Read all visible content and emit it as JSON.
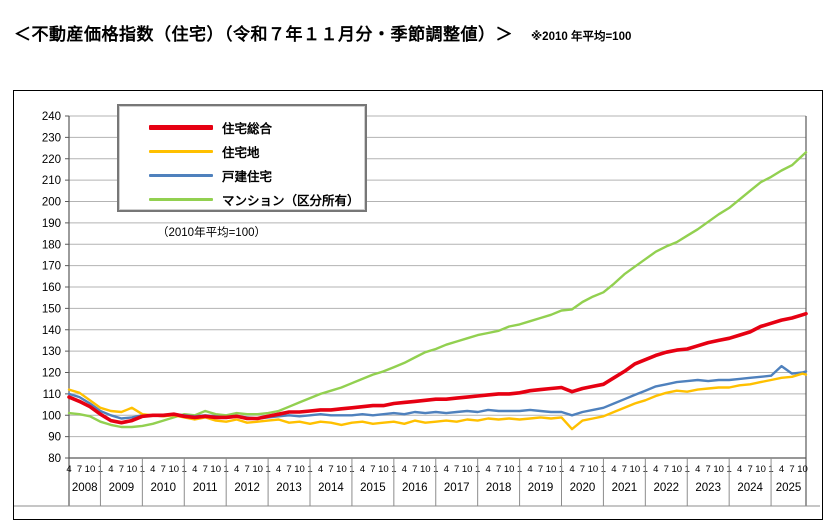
{
  "header": {
    "title": "＜不動産価格指数（住宅）（令和７年１１月分・季節調整値）＞",
    "note": "※2010 年平均=100"
  },
  "legend": {
    "items": [
      {
        "label": "住宅総合",
        "color": "#e60012",
        "thickness": 5
      },
      {
        "label": "住宅地",
        "color": "#ffc000",
        "thickness": 3
      },
      {
        "label": "戸建住宅",
        "color": "#4f81bd",
        "thickness": 3
      },
      {
        "label": "マンション（区分所有）",
        "color": "#92d050",
        "thickness": 3
      }
    ],
    "caption": "（2010年平均=100）"
  },
  "chart_data": {
    "type": "line",
    "title": "不動産価格指数（住宅）季節調整値",
    "ylim": [
      80,
      240
    ],
    "ytick_step": 10,
    "grid": true,
    "legend_position": "top-left",
    "x_axis": {
      "month_tick_pattern": [
        "4",
        "7",
        "10",
        "1"
      ],
      "years": [
        "2008",
        "2009",
        "2010",
        "2011",
        "2012",
        "2013",
        "2014",
        "2015",
        "2016",
        "2017",
        "2018",
        "2019",
        "2020",
        "2021",
        "2022",
        "2023",
        "2024",
        "2025"
      ],
      "start": "2008-04",
      "end": "2025-11"
    },
    "x": [
      "2008-04",
      "2008-07",
      "2008-10",
      "2009-01",
      "2009-04",
      "2009-07",
      "2009-10",
      "2010-01",
      "2010-04",
      "2010-07",
      "2010-10",
      "2011-01",
      "2011-04",
      "2011-07",
      "2011-10",
      "2012-01",
      "2012-04",
      "2012-07",
      "2012-10",
      "2013-01",
      "2013-04",
      "2013-07",
      "2013-10",
      "2014-01",
      "2014-04",
      "2014-07",
      "2014-10",
      "2015-01",
      "2015-04",
      "2015-07",
      "2015-10",
      "2016-01",
      "2016-04",
      "2016-07",
      "2016-10",
      "2017-01",
      "2017-04",
      "2017-07",
      "2017-10",
      "2018-01",
      "2018-04",
      "2018-07",
      "2018-10",
      "2019-01",
      "2019-04",
      "2019-07",
      "2019-10",
      "2020-01",
      "2020-04",
      "2020-07",
      "2020-10",
      "2021-01",
      "2021-04",
      "2021-07",
      "2021-10",
      "2022-01",
      "2022-04",
      "2022-07",
      "2022-10",
      "2023-01",
      "2023-04",
      "2023-07",
      "2023-10",
      "2024-01",
      "2024-04",
      "2024-07",
      "2024-10",
      "2025-01",
      "2025-04",
      "2025-07",
      "2025-10",
      "2025-11"
    ],
    "series": [
      {
        "name": "住宅総合",
        "color": "#e60012",
        "width": 3.6,
        "values": [
          108.5,
          106.5,
          104.0,
          100.5,
          97.5,
          96.5,
          97.5,
          99.5,
          100.0,
          100.0,
          100.5,
          99.5,
          99.0,
          99.5,
          99.0,
          99.0,
          99.5,
          98.5,
          98.5,
          99.5,
          100.5,
          101.5,
          101.5,
          102.0,
          102.5,
          102.5,
          103.0,
          103.5,
          104.0,
          104.5,
          104.5,
          105.5,
          106.0,
          106.5,
          107.0,
          107.5,
          107.5,
          108.0,
          108.5,
          109.0,
          109.5,
          110.0,
          110.0,
          110.5,
          111.5,
          112.0,
          112.5,
          113.0,
          111.0,
          112.5,
          113.5,
          114.5,
          117.5,
          120.5,
          124.0,
          126.0,
          128.0,
          129.5,
          130.5,
          131.0,
          132.5,
          134.0,
          135.0,
          136.0,
          137.5,
          139.0,
          141.5,
          143.0,
          144.5,
          145.5,
          147.0,
          147.5
        ]
      },
      {
        "name": "住宅地",
        "color": "#ffc000",
        "width": 2.4,
        "values": [
          112.0,
          110.5,
          107.0,
          103.5,
          102.0,
          101.5,
          103.5,
          100.5,
          100.0,
          99.5,
          100.0,
          99.0,
          98.0,
          99.0,
          97.5,
          97.0,
          98.0,
          96.5,
          97.0,
          97.5,
          98.0,
          96.5,
          97.0,
          96.0,
          97.0,
          96.5,
          95.5,
          96.5,
          97.0,
          96.0,
          96.5,
          97.0,
          96.0,
          97.5,
          96.5,
          97.0,
          97.5,
          97.0,
          98.0,
          97.5,
          98.5,
          98.0,
          98.5,
          98.0,
          98.5,
          99.0,
          98.5,
          99.0,
          93.5,
          97.5,
          98.5,
          99.5,
          101.5,
          103.5,
          105.5,
          107.0,
          109.0,
          110.5,
          111.5,
          111.0,
          112.0,
          112.5,
          113.0,
          113.0,
          114.0,
          114.5,
          115.5,
          116.5,
          117.5,
          118.0,
          119.5,
          119.0
        ]
      },
      {
        "name": "戸建住宅",
        "color": "#4f81bd",
        "width": 2.4,
        "values": [
          110.0,
          108.5,
          105.5,
          102.0,
          100.0,
          98.5,
          99.0,
          100.0,
          100.0,
          99.5,
          100.5,
          100.0,
          99.5,
          100.0,
          99.5,
          99.0,
          99.5,
          99.0,
          98.5,
          99.0,
          99.5,
          100.0,
          99.5,
          100.0,
          100.5,
          100.0,
          100.0,
          100.0,
          100.5,
          100.0,
          100.5,
          101.0,
          100.5,
          101.5,
          101.0,
          101.5,
          101.0,
          101.5,
          102.0,
          101.5,
          102.5,
          102.0,
          102.0,
          102.0,
          102.5,
          102.0,
          101.5,
          101.5,
          100.0,
          101.5,
          102.5,
          103.5,
          105.5,
          107.5,
          109.5,
          111.5,
          113.5,
          114.5,
          115.5,
          116.0,
          116.5,
          116.0,
          116.5,
          116.5,
          117.0,
          117.5,
          118.0,
          118.5,
          123.0,
          119.5,
          120.0,
          120.5
        ]
      },
      {
        "name": "マンション（区分所有）",
        "color": "#92d050",
        "width": 2.4,
        "values": [
          101.0,
          100.5,
          99.5,
          97.0,
          95.5,
          94.5,
          94.5,
          95.0,
          96.0,
          97.5,
          99.0,
          100.5,
          100.0,
          102.0,
          100.5,
          100.0,
          101.0,
          100.5,
          100.5,
          101.0,
          102.0,
          104.0,
          106.0,
          108.0,
          110.0,
          111.5,
          113.0,
          115.0,
          117.0,
          119.0,
          120.5,
          122.5,
          124.5,
          127.0,
          129.5,
          131.0,
          133.0,
          134.5,
          136.0,
          137.5,
          138.5,
          139.5,
          141.5,
          142.5,
          144.0,
          145.5,
          147.0,
          149.0,
          149.5,
          153.0,
          155.5,
          157.5,
          161.5,
          166.0,
          169.5,
          173.0,
          176.5,
          179.0,
          181.0,
          184.0,
          187.0,
          190.5,
          194.0,
          197.0,
          201.0,
          205.0,
          209.0,
          211.5,
          214.5,
          217.0,
          221.5,
          223.0
        ]
      }
    ],
    "colors": {
      "grid": "#b3b3b3",
      "axis": "#595959",
      "separator": "#8c8c8c",
      "frame": "#000000"
    }
  }
}
